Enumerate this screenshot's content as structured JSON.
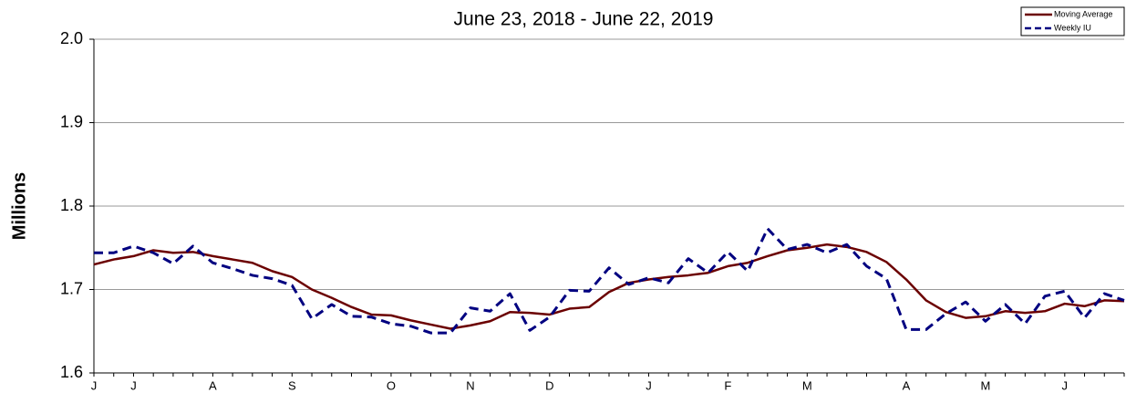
{
  "chart_data": {
    "type": "line",
    "title": "June 23, 2018 - June 22, 2019",
    "y_label": "Millions",
    "categories": [
      "J",
      null,
      "J",
      null,
      null,
      null,
      "A",
      null,
      null,
      null,
      "S",
      null,
      null,
      null,
      null,
      "O",
      null,
      null,
      null,
      "N",
      null,
      null,
      null,
      "D",
      null,
      null,
      null,
      null,
      "J",
      null,
      null,
      null,
      "F",
      null,
      null,
      null,
      "M",
      null,
      null,
      null,
      null,
      "A",
      null,
      null,
      null,
      "M",
      null,
      null,
      null,
      "J",
      null,
      null,
      null
    ],
    "series": [
      {
        "name": "Moving Average",
        "color": "#6b0000",
        "dashed": false,
        "values": [
          1.73,
          1.736,
          1.74,
          1.747,
          1.744,
          1.745,
          1.74,
          1.736,
          1.732,
          1.722,
          1.715,
          1.7,
          1.69,
          1.679,
          1.67,
          1.669,
          1.663,
          1.658,
          1.653,
          1.657,
          1.662,
          1.673,
          1.672,
          1.67,
          1.677,
          1.679,
          1.697,
          1.708,
          1.712,
          1.715,
          1.717,
          1.72,
          1.728,
          1.732,
          1.74,
          1.747,
          1.75,
          1.754,
          1.751,
          1.745,
          1.733,
          1.712,
          1.687,
          1.673,
          1.666,
          1.668,
          1.674,
          1.672,
          1.674,
          1.683,
          1.68,
          1.687,
          1.686
        ]
      },
      {
        "name": "Weekly IU",
        "color": "#000080",
        "dashed": true,
        "values": [
          1.744,
          1.744,
          1.752,
          1.744,
          1.731,
          1.752,
          1.732,
          1.725,
          1.717,
          1.713,
          1.705,
          1.665,
          1.682,
          1.668,
          1.667,
          1.659,
          1.656,
          1.648,
          1.648,
          1.678,
          1.674,
          1.695,
          1.651,
          1.667,
          1.699,
          1.698,
          1.726,
          1.706,
          1.714,
          1.708,
          1.737,
          1.72,
          1.745,
          1.722,
          1.773,
          1.748,
          1.754,
          1.744,
          1.754,
          1.728,
          1.713,
          1.652,
          1.652,
          1.671,
          1.685,
          1.662,
          1.682,
          1.659,
          1.692,
          1.698,
          1.666,
          1.695,
          1.687
        ]
      }
    ],
    "ylim": [
      1.6,
      2.0
    ],
    "yticks": [
      1.6,
      1.7,
      1.8,
      1.9,
      {
        "value": 2.0,
        "label": "2.0"
      }
    ],
    "grid": true,
    "legend": "top-right"
  }
}
